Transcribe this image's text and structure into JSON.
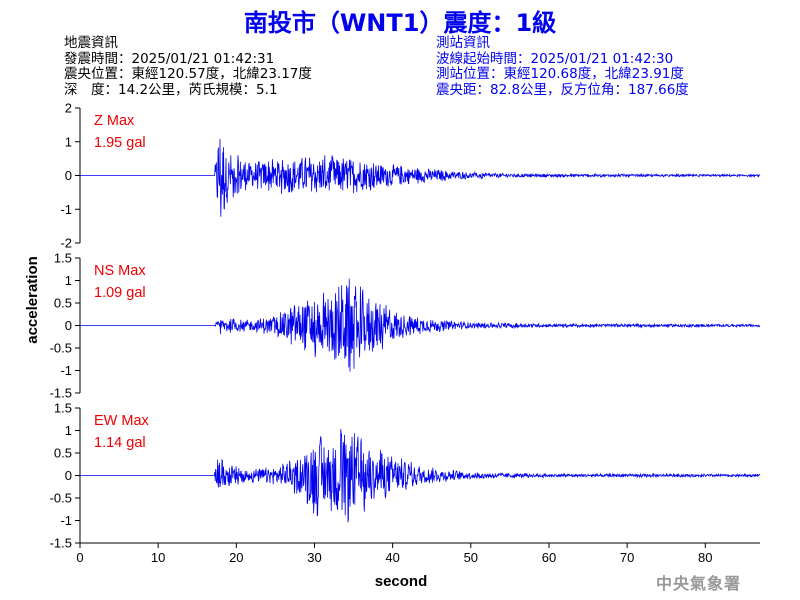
{
  "title": "南投市（WNT1）震度：1級",
  "earthquake_info": {
    "heading": "地震資訊",
    "time": "發震時間：2025/01/21 01:42:31",
    "epicenter": "震央位置：東經120.57度，北緯23.17度",
    "depth_magnitude": "深　度：14.2公里，芮氏規模：5.1"
  },
  "station_info": {
    "heading": "測站資訊",
    "wave_start": "波線起始時間：2025/01/21 01:42:30",
    "location": "測站位置：東經120.68度，北緯23.91度",
    "distance": "震央距：82.8公里，反方位角：187.66度"
  },
  "credit": "中央氣象署",
  "colors": {
    "title": "#0000ee",
    "trace": "#0000ee",
    "label": "#ee0000",
    "station_text": "#0000ee"
  },
  "chart_data": {
    "type": "line",
    "xlabel": "second",
    "ylabel": "acceleration",
    "xlim": [
      0,
      87
    ],
    "xticks": [
      "0",
      "10",
      "20",
      "30",
      "40",
      "50",
      "60",
      "70",
      "80"
    ],
    "grid": false,
    "panels": [
      {
        "name": "Z",
        "max_label": "Z Max",
        "max_value": "1.95 gal",
        "ylim": [
          -2,
          2
        ],
        "yticks": [
          "2",
          "1",
          "0",
          "-1",
          "-2"
        ],
        "onset": 17.2,
        "envelope": [
          [
            0,
            0.0
          ],
          [
            17.2,
            0.03
          ],
          [
            17.6,
            1.2
          ],
          [
            18,
            1.9
          ],
          [
            18.4,
            1.3
          ],
          [
            19,
            0.7
          ],
          [
            22,
            0.45
          ],
          [
            26,
            0.55
          ],
          [
            30,
            0.6
          ],
          [
            33,
            0.6
          ],
          [
            36,
            0.5
          ],
          [
            40,
            0.35
          ],
          [
            45,
            0.2
          ],
          [
            50,
            0.1
          ],
          [
            55,
            0.06
          ],
          [
            70,
            0.04
          ],
          [
            87,
            0.03
          ]
        ]
      },
      {
        "name": "NS",
        "max_label": "NS Max",
        "max_value": "1.09 gal",
        "ylim": [
          -1.5,
          1.5
        ],
        "yticks": [
          "1.5",
          "1",
          "0.5",
          "0",
          "-0.5",
          "-1",
          "-1.5"
        ],
        "onset": 17.2,
        "envelope": [
          [
            0,
            0.0
          ],
          [
            17.2,
            0.02
          ],
          [
            18,
            0.2
          ],
          [
            20,
            0.15
          ],
          [
            22,
            0.12
          ],
          [
            25,
            0.25
          ],
          [
            28,
            0.55
          ],
          [
            30,
            0.7
          ],
          [
            32,
            0.75
          ],
          [
            34,
            1.09
          ],
          [
            36,
            0.85
          ],
          [
            38,
            0.6
          ],
          [
            41,
            0.3
          ],
          [
            45,
            0.15
          ],
          [
            50,
            0.07
          ],
          [
            60,
            0.04
          ],
          [
            87,
            0.03
          ]
        ]
      },
      {
        "name": "EW",
        "max_label": "EW Max",
        "max_value": "1.14 gal",
        "ylim": [
          -1.5,
          1.5
        ],
        "yticks": [
          "1.5",
          "1",
          "0.5",
          "0",
          "-0.5",
          "-1",
          "-1.5"
        ],
        "onset": 17.2,
        "envelope": [
          [
            0,
            0.0
          ],
          [
            17.2,
            0.02
          ],
          [
            17.6,
            0.5
          ],
          [
            18.5,
            0.3
          ],
          [
            21,
            0.15
          ],
          [
            25,
            0.2
          ],
          [
            28,
            0.45
          ],
          [
            30,
            0.95
          ],
          [
            32,
            0.8
          ],
          [
            34,
            1.14
          ],
          [
            36,
            0.85
          ],
          [
            38,
            0.6
          ],
          [
            40,
            0.45
          ],
          [
            44,
            0.2
          ],
          [
            50,
            0.08
          ],
          [
            60,
            0.04
          ],
          [
            87,
            0.03
          ]
        ]
      }
    ]
  }
}
